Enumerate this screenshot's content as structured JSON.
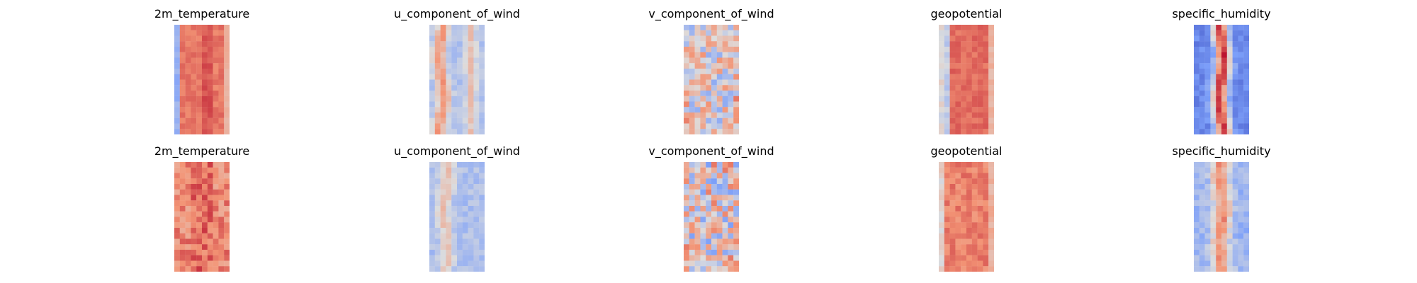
{
  "chart_data": [
    {
      "type": "heatmap",
      "title": "2m_temperature",
      "row": 0,
      "col": 0,
      "colormap": "coolwarm",
      "pattern": "temperature"
    },
    {
      "type": "heatmap",
      "title": "u_component_of_wind",
      "row": 0,
      "col": 1,
      "colormap": "coolwarm",
      "pattern": "uwind"
    },
    {
      "type": "heatmap",
      "title": "v_component_of_wind",
      "row": 0,
      "col": 2,
      "colormap": "coolwarm",
      "pattern": "vwind"
    },
    {
      "type": "heatmap",
      "title": "geopotential",
      "row": 0,
      "col": 3,
      "colormap": "coolwarm",
      "pattern": "geopotential"
    },
    {
      "type": "heatmap",
      "title": "specific_humidity",
      "row": 0,
      "col": 4,
      "colormap": "coolwarm",
      "pattern": "humidity"
    },
    {
      "type": "heatmap",
      "title": "2m_temperature",
      "row": 1,
      "col": 0,
      "colormap": "coolwarm",
      "pattern": "temperature_noisy"
    },
    {
      "type": "heatmap",
      "title": "u_component_of_wind",
      "row": 1,
      "col": 1,
      "colormap": "coolwarm",
      "pattern": "uwind_weak"
    },
    {
      "type": "heatmap",
      "title": "v_component_of_wind",
      "row": 1,
      "col": 2,
      "colormap": "coolwarm",
      "pattern": "vwind_noisy"
    },
    {
      "type": "heatmap",
      "title": "geopotential",
      "row": 1,
      "col": 3,
      "colormap": "coolwarm",
      "pattern": "geopotential_noisy"
    },
    {
      "type": "heatmap",
      "title": "specific_humidity",
      "row": 1,
      "col": 4,
      "colormap": "coolwarm",
      "pattern": "humidity_weak"
    }
  ]
}
